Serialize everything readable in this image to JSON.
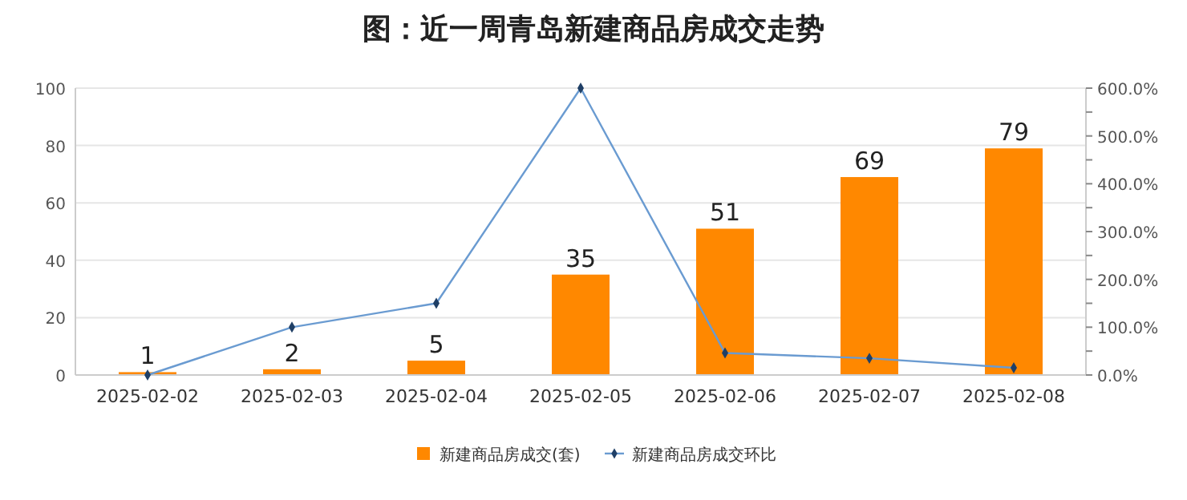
{
  "chart_data": {
    "type": "bar",
    "title": "图：近一周青岛新建商品房成交走势",
    "categories": [
      "2025-02-02",
      "2025-02-03",
      "2025-02-04",
      "2025-02-05",
      "2025-02-06",
      "2025-02-07",
      "2025-02-08"
    ],
    "series": [
      {
        "name": "新建商品房成交(套)",
        "color": "#ff8800",
        "values": [
          1,
          2,
          5,
          35,
          51,
          69,
          79
        ],
        "value_labels": [
          "1",
          "2",
          "5",
          "35",
          "51",
          "69",
          "79"
        ]
      },
      {
        "name": "新建商品房成交环比",
        "type": "line",
        "axis": "y2",
        "color": "#6a9bd1",
        "values": [
          0,
          100,
          150,
          600,
          46,
          35,
          15
        ]
      }
    ],
    "ylim": [
      0,
      100
    ],
    "yticks": [
      0,
      20,
      40,
      60,
      80,
      100
    ],
    "y2lim": [
      0,
      600
    ],
    "y2ticks": [
      {
        "value": 0,
        "label": "0.0%"
      },
      {
        "value": 50,
        "label": null
      },
      {
        "value": 100,
        "label": "100.0%"
      },
      {
        "value": 150,
        "label": null
      },
      {
        "value": 200,
        "label": "200.0%"
      },
      {
        "value": 250,
        "label": null
      },
      {
        "value": 300,
        "label": "300.0%"
      },
      {
        "value": 350,
        "label": null
      },
      {
        "value": 400,
        "label": "400.0%"
      },
      {
        "value": 450,
        "label": null
      },
      {
        "value": 500,
        "label": "500.0%"
      },
      {
        "value": 550,
        "label": null
      },
      {
        "value": 600,
        "label": "600.0%"
      }
    ],
    "grid": "y",
    "legend": "bottom",
    "marker": "diamond",
    "line_style": "solid"
  }
}
